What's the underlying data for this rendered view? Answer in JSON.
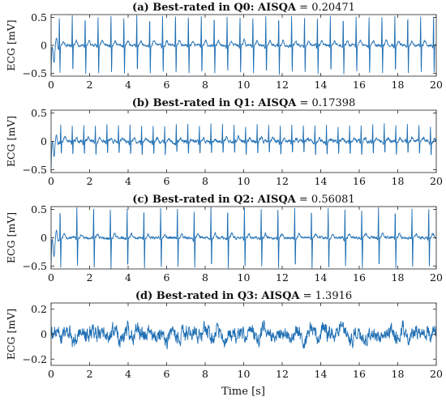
{
  "figure": {
    "xlabel": "Time [s]"
  },
  "chart_data": [
    {
      "type": "line",
      "title_bold": "(a) Best-rated in Q0: AISQA",
      "title_rest": " = 0.20471",
      "ylabel": "ECG [mV]",
      "xlim": [
        0,
        20
      ],
      "ylim": [
        -0.55,
        0.55
      ],
      "xticks": [
        "0",
        "2",
        "4",
        "6",
        "8",
        "10",
        "12",
        "14",
        "16",
        "18",
        "20"
      ],
      "yticks": [
        "0.5",
        "0",
        "−0.5"
      ],
      "ytick_values": [
        0.5,
        0,
        -0.5
      ],
      "signal": {
        "kind": "ecg",
        "beat_start_s": 0.43,
        "beat_interval_s": 0.67,
        "r_peak_mV": 0.55,
        "s_trough_mV": -0.52,
        "t_wave_mV": 0.08,
        "noise_mV": 0.03,
        "seed": 11
      },
      "series_color": "#1f6fb4"
    },
    {
      "type": "line",
      "title_bold": "(b) Best-rated in Q1: AISQA",
      "title_rest": " = 0.17398",
      "ylabel": "ECG [mV]",
      "xlim": [
        0,
        20
      ],
      "ylim": [
        -0.55,
        0.55
      ],
      "xticks": [
        "0",
        "2",
        "4",
        "6",
        "8",
        "10",
        "12",
        "14",
        "16",
        "18",
        "20"
      ],
      "yticks": [
        "0.5",
        "0",
        "−0.5"
      ],
      "ytick_values": [
        0.5,
        0,
        -0.5
      ],
      "signal": {
        "kind": "ecg",
        "beat_start_s": 0.5,
        "beat_interval_s": 0.6,
        "r_peak_mV": 0.3,
        "s_trough_mV": -0.25,
        "t_wave_mV": 0.06,
        "noise_mV": 0.04,
        "seed": 23
      },
      "series_color": "#1f6fb4"
    },
    {
      "type": "line",
      "title_bold": "(c) Best-rated in Q2: AISQA",
      "title_rest": " = 0.56081",
      "ylabel": "ECG [mV]",
      "xlim": [
        0,
        20
      ],
      "ylim": [
        -0.55,
        0.55
      ],
      "xticks": [
        "0",
        "2",
        "4",
        "6",
        "8",
        "10",
        "12",
        "14",
        "16",
        "18",
        "20"
      ],
      "yticks": [
        "0.5",
        "0",
        "−0.5"
      ],
      "ytick_values": [
        0.5,
        0,
        -0.5
      ],
      "signal": {
        "kind": "ecg",
        "beat_start_s": 0.47,
        "beat_interval_s": 0.87,
        "r_peak_mV": 0.55,
        "s_trough_mV": -0.55,
        "t_wave_mV": 0.07,
        "noise_mV": 0.03,
        "seed": 37
      },
      "series_color": "#1f6fb4"
    },
    {
      "type": "line",
      "title_bold": "(d) Best-rated in Q3: AISQA",
      "title_rest": " = 1.3916",
      "ylabel": "ECG [mV]",
      "xlim": [
        0,
        20
      ],
      "ylim": [
        -0.25,
        0.25
      ],
      "xticks": [
        "0",
        "2",
        "4",
        "6",
        "8",
        "10",
        "12",
        "14",
        "16",
        "18",
        "20"
      ],
      "yticks": [
        "0.2",
        "0",
        "−0.2"
      ],
      "ytick_values": [
        0.2,
        0,
        -0.2
      ],
      "signal": {
        "kind": "noise",
        "amplitude_mV": 0.055,
        "seed": 51
      },
      "series_color": "#1f6fb4"
    }
  ]
}
